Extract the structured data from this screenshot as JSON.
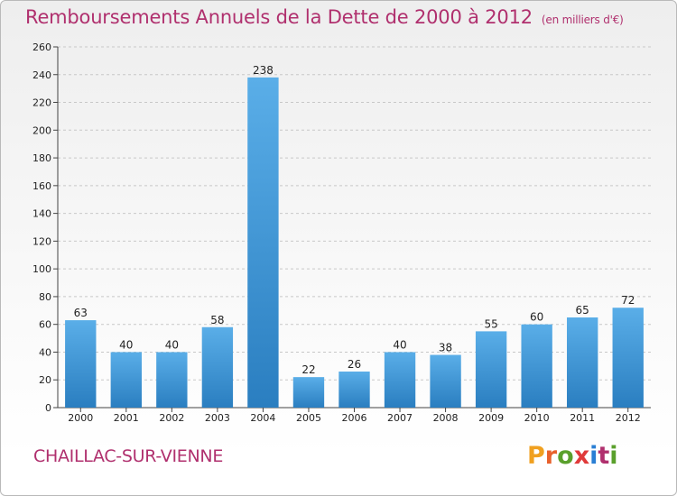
{
  "header": {
    "title": "Remboursements Annuels de la Dette de 2000 à 2012",
    "unit": "(en milliers d'€)"
  },
  "footer": {
    "town": "CHAILLAC-SUR-VIENNE",
    "logo": "Proxiti",
    "logo_letters": [
      {
        "ch": "P",
        "color": "#f0a020"
      },
      {
        "ch": "r",
        "color": "#e8612c"
      },
      {
        "ch": "o",
        "color": "#5aa02c"
      },
      {
        "ch": "x",
        "color": "#e03a3a"
      },
      {
        "ch": "i",
        "color": "#2a7fd4"
      },
      {
        "ch": "t",
        "color": "#b0306e"
      },
      {
        "ch": "i",
        "color": "#5aa02c"
      }
    ]
  },
  "colors": {
    "accent": "#b0306e",
    "bar_top": "#5aaee8",
    "bar_bottom": "#2a7ec0",
    "grid": "#c8c8c8"
  },
  "chart_data": {
    "type": "bar",
    "title": "Remboursements Annuels de la Dette de 2000 à 2012",
    "subtitle": "(en milliers d'€)",
    "categories": [
      "2000",
      "2001",
      "2002",
      "2003",
      "2004",
      "2005",
      "2006",
      "2007",
      "2008",
      "2009",
      "2010",
      "2011",
      "2012"
    ],
    "values": [
      63,
      40,
      40,
      58,
      238,
      22,
      26,
      40,
      38,
      55,
      60,
      65,
      72
    ],
    "value_labels": [
      "63",
      "40",
      "40",
      "58",
      "238",
      "22",
      "26",
      "40",
      "38",
      "55",
      "60",
      "65",
      "72"
    ],
    "ylim": [
      0,
      260
    ],
    "yticks": [
      0,
      20,
      40,
      60,
      80,
      100,
      120,
      140,
      160,
      180,
      200,
      220,
      240,
      260
    ],
    "ytick_labels": [
      "0",
      "20",
      "40",
      "60",
      "80",
      "100",
      "120",
      "140",
      "160",
      "180",
      "200",
      "220",
      "240",
      "260"
    ],
    "grid": true
  }
}
